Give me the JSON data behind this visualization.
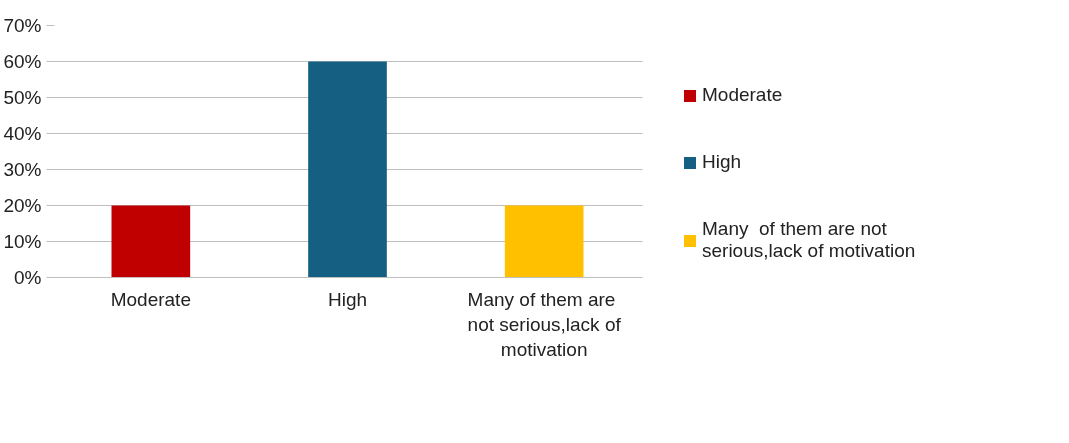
{
  "chart_data": {
    "type": "bar",
    "categories": [
      "Moderate",
      "High",
      "Many  of them are not serious,lack of motivation"
    ],
    "series": [
      {
        "name": "Moderate",
        "color": "#c00000",
        "values": [
          20,
          null,
          null
        ]
      },
      {
        "name": "High",
        "color": "#156082",
        "values": [
          null,
          60,
          null
        ]
      },
      {
        "name": "Many  of them are not serious,lack of motivation",
        "color": "#ffc000",
        "values": [
          null,
          null,
          20
        ]
      }
    ],
    "ylim": [
      0,
      70
    ],
    "yticks": [
      {
        "value": 0,
        "label": "0%"
      },
      {
        "value": 10,
        "label": "10%"
      },
      {
        "value": 20,
        "label": "20%"
      },
      {
        "value": 30,
        "label": "30%"
      },
      {
        "value": 40,
        "label": "40%"
      },
      {
        "value": 50,
        "label": "50%"
      },
      {
        "value": 60,
        "label": "60%"
      },
      {
        "value": 70,
        "label": "70%"
      }
    ],
    "grid": "y",
    "legend": "right"
  }
}
